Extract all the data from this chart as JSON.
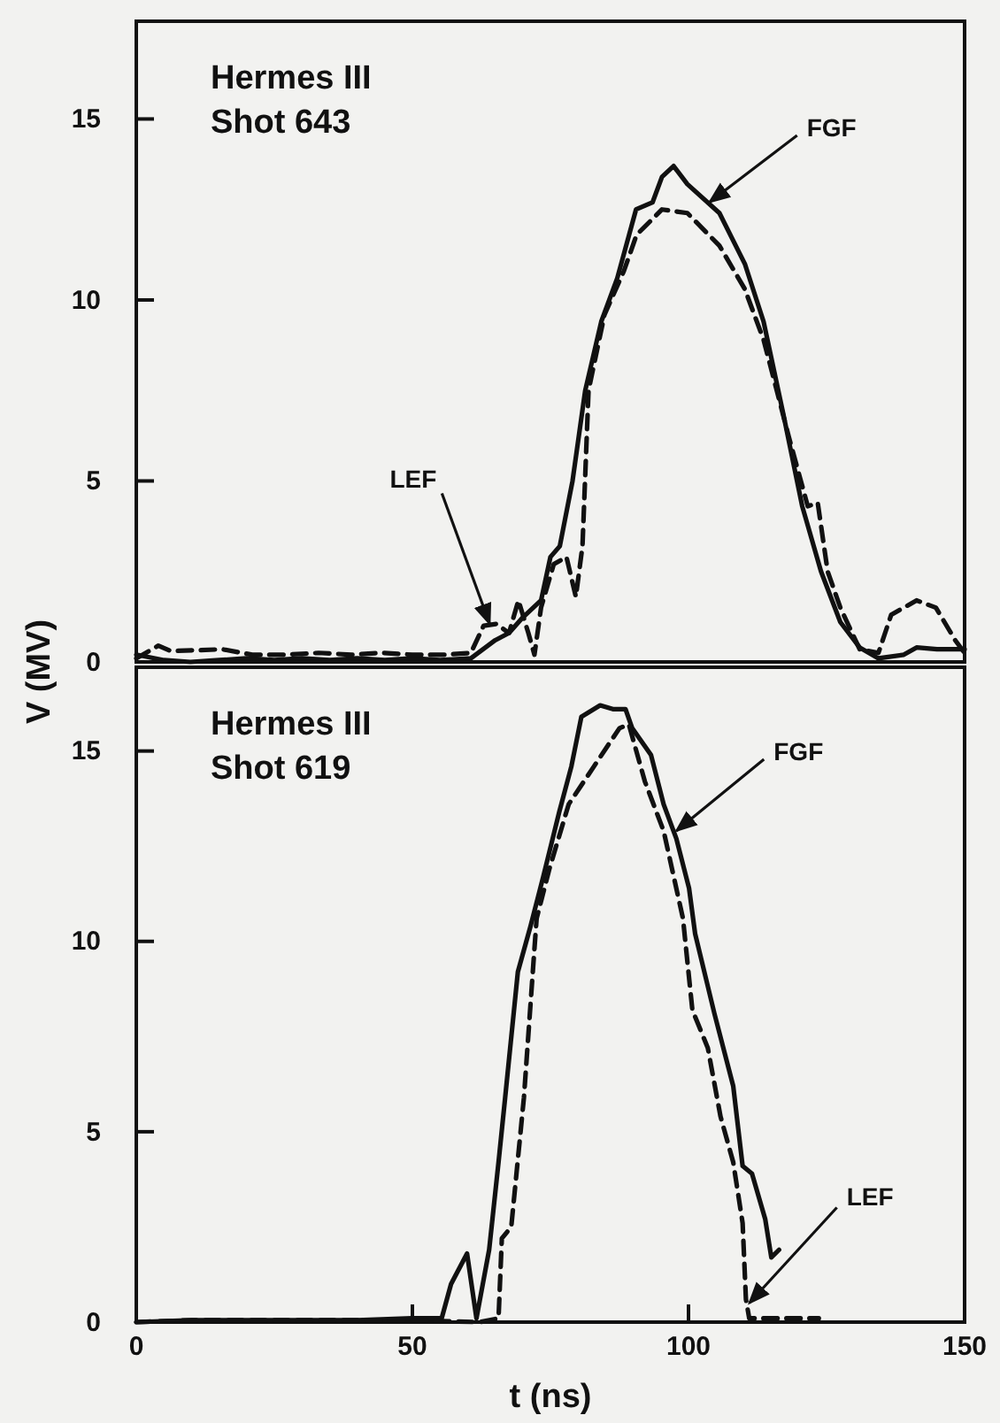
{
  "chart_data": [
    {
      "type": "line",
      "title": "Hermes III",
      "subtitle": "Shot 643",
      "ylabel": "V (MV)",
      "xlim": [
        0,
        150
      ],
      "ylim": [
        0,
        17.7
      ],
      "yticks": [
        0,
        5,
        10,
        15
      ],
      "tick_labels": "y",
      "grid": false,
      "annotations": [
        {
          "text": "FGF",
          "x": 103.8,
          "y": 12.7
        },
        {
          "text": "LEF",
          "x": 64,
          "y": 1.05
        }
      ],
      "series": [
        {
          "color": "#111111",
          "line_style": "solid",
          "x": [
            0,
            5,
            9.8,
            15,
            20,
            25,
            30,
            35,
            40,
            45,
            50,
            55,
            60.6,
            65,
            67.5,
            69.8,
            73.3,
            75,
            76.7,
            79,
            81.3,
            84.2,
            87.1,
            90.5,
            93.5,
            95.2,
            97.3,
            99.8,
            105.6,
            110.2,
            113.6,
            117.1,
            120.6,
            124,
            127.5,
            131,
            134.4,
            139,
            141.3,
            145,
            150
          ],
          "values": [
            0.2,
            0.05,
            0,
            0.05,
            0.1,
            0.05,
            0.1,
            0.05,
            0.1,
            0.05,
            0.1,
            0.05,
            0.1,
            0.6,
            0.8,
            1.2,
            1.7,
            2.9,
            3.2,
            5,
            7.5,
            9.4,
            10.6,
            12.5,
            12.7,
            13.4,
            13.7,
            13.2,
            12.4,
            11,
            9.4,
            6.9,
            4.3,
            2.5,
            1.1,
            0.4,
            0.1,
            0.2,
            0.4,
            0.35,
            0.35
          ]
        },
        {
          "color": "#111111",
          "line_style": "dashed",
          "x": [
            0,
            4,
            6.3,
            15.6,
            21,
            27,
            33,
            39,
            44.4,
            50,
            56,
            60.6,
            62.9,
            65.2,
            67.5,
            69.2,
            71,
            72.1,
            73.3,
            75.6,
            77.9,
            79.6,
            80.8,
            81.9,
            84.8,
            88.3,
            90.6,
            95.2,
            99.8,
            105.6,
            110.2,
            113.6,
            118.2,
            121.6,
            123.4,
            125.2,
            127.5,
            131,
            134.4,
            136.7,
            141.3,
            144.8,
            148.3,
            150
          ],
          "values": [
            0.1,
            0.45,
            0.3,
            0.35,
            0.2,
            0.2,
            0.25,
            0.2,
            0.25,
            0.2,
            0.2,
            0.25,
            1,
            1.05,
            0.8,
            1.7,
            0.8,
            0.2,
            1.5,
            2.7,
            2.9,
            1.8,
            3.2,
            7.5,
            9.6,
            10.8,
            11.8,
            12.5,
            12.4,
            11.5,
            10.3,
            8.9,
            6.2,
            4.3,
            4.4,
            2.5,
            1.5,
            0.35,
            0.25,
            1.3,
            1.7,
            1.5,
            0.6,
            0.25
          ]
        }
      ]
    },
    {
      "type": "line",
      "title": "Hermes III",
      "subtitle": "Shot 619",
      "xlabel": "t (ns)",
      "xlim": [
        0,
        150
      ],
      "xticks": [
        0,
        50,
        100,
        150
      ],
      "ylim": [
        0,
        17.2
      ],
      "yticks": [
        0,
        5,
        10,
        15
      ],
      "grid": false,
      "annotations": [
        {
          "text": "FGF",
          "x": 97.8,
          "y": 12.9
        },
        {
          "text": "LEF",
          "x": 111,
          "y": 0.5
        }
      ],
      "series": [
        {
          "color": "#111111",
          "line_style": "solid",
          "x": [
            0,
            10,
            20,
            30,
            40,
            50,
            55.3,
            57,
            59.9,
            61.6,
            63.9,
            65.6,
            66.8,
            69.1,
            71.4,
            73.7,
            76.6,
            78.8,
            80.6,
            84,
            86.3,
            88.6,
            89.8,
            93.2,
            95.5,
            97.8,
            100.1,
            101.2,
            104.7,
            108.1,
            109.8,
            111.5,
            113.9,
            115,
            116.4
          ],
          "values": [
            0,
            0.05,
            0.05,
            0.05,
            0.05,
            0.1,
            0.1,
            1,
            1.8,
            0.1,
            1.9,
            4.2,
            5.9,
            9.2,
            10.4,
            11.7,
            13.4,
            14.6,
            15.9,
            16.2,
            16.1,
            16.1,
            15.6,
            14.9,
            13.6,
            12.7,
            11.4,
            10.2,
            8.1,
            6.2,
            4.1,
            3.9,
            2.7,
            1.7,
            1.9
          ]
        },
        {
          "color": "#111111",
          "line_style": "dashed",
          "x": [
            0,
            10,
            20,
            30,
            40,
            50,
            62.2,
            65.6,
            66.2,
            67.9,
            70.2,
            72,
            72.5,
            74.8,
            78.3,
            82.9,
            87.5,
            89.2,
            92.1,
            95.5,
            99,
            100.7,
            103.5,
            105.8,
            108.1,
            109.8,
            110.4,
            111,
            113.9,
            117.3,
            123.6
          ],
          "values": [
            0,
            0.05,
            0.05,
            0.05,
            0.05,
            0.05,
            0,
            0.1,
            2.2,
            2.5,
            5.9,
            9.6,
            10.6,
            11.9,
            13.6,
            14.6,
            15.6,
            15.7,
            14.2,
            12.9,
            10.6,
            8.2,
            7.2,
            5.4,
            4.2,
            2.6,
            0.6,
            0.1,
            0.1,
            0.1,
            0.1
          ]
        }
      ]
    }
  ]
}
